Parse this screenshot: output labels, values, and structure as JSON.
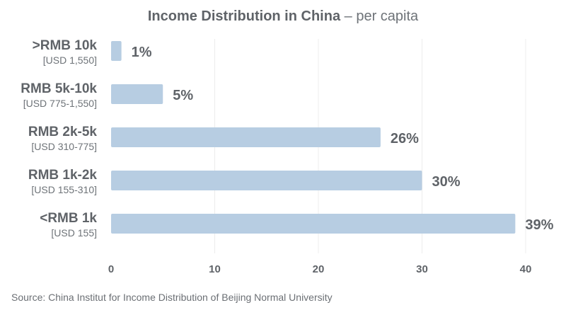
{
  "title": {
    "main": "Income Distribution in China",
    "sub": "– per capita"
  },
  "source": "Source: China Institut for Income Distribution of Beijing Normal University",
  "colors": {
    "bar": "#b7cde2",
    "grid": "#ececec",
    "text": "#5f6368",
    "sublabel": "#6e7378"
  },
  "chart_data": {
    "type": "bar",
    "orientation": "horizontal",
    "title": "Income Distribution in China – per capita",
    "categories": [
      ">RMB 10k",
      "RMB 5k-10k",
      "RMB 2k-5k",
      "RMB 1k-2k",
      "<RMB 1k"
    ],
    "sublabels": [
      "[USD 1,550]",
      "[USD 775-1,550]",
      "[USD 310-775]",
      "[USD 155-310]",
      "[USD 155]"
    ],
    "values": [
      1,
      5,
      26,
      30,
      39
    ],
    "value_labels": [
      "1%",
      "5%",
      "26%",
      "30%",
      "39%"
    ],
    "xlim": [
      0,
      40
    ],
    "xticks": [
      0,
      10,
      20,
      30,
      40
    ],
    "grid": true,
    "legend": "none"
  }
}
